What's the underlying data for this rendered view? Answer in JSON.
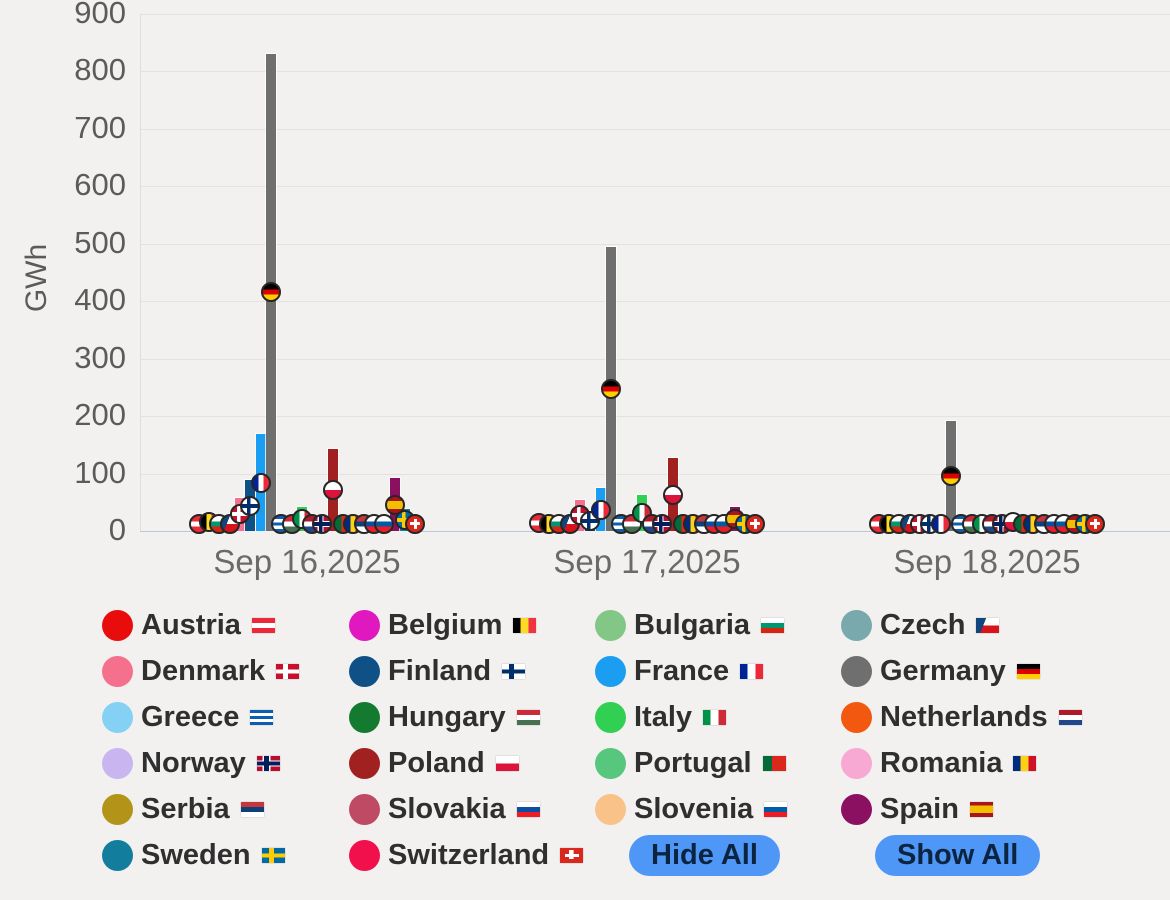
{
  "chart": {
    "ylabel": "GWh",
    "ytick_labels": [
      "0",
      "100",
      "200",
      "300",
      "400",
      "500",
      "600",
      "700",
      "800",
      "900"
    ]
  },
  "chart_data": {
    "type": "bar",
    "title": "",
    "xlabel": "",
    "ylabel": "GWh",
    "unit": "GWh",
    "ylim": [
      0,
      900
    ],
    "ytick_step": 100,
    "grid": true,
    "legend_position": "bottom",
    "marker_style": "flag-circle-at-bar-midpoint",
    "categories": [
      "Sep 16,2025",
      "Sep 17,2025",
      "Sep 18,2025"
    ],
    "series": [
      {
        "name": "Austria",
        "color": "#e80c0c",
        "values": [
          22,
          28,
          5
        ],
        "flag": {
          "type": "h",
          "colors": [
            "#ed2939",
            "#ffffff",
            "#ed2939"
          ]
        }
      },
      {
        "name": "Belgium",
        "color": "#e018c0",
        "values": [
          31,
          18,
          8
        ],
        "flag": {
          "type": "v",
          "colors": [
            "#000000",
            "#fdda24",
            "#ef3340"
          ]
        }
      },
      {
        "name": "Bulgaria",
        "color": "#82c785",
        "values": [
          6,
          11,
          4
        ],
        "flag": {
          "type": "h",
          "colors": [
            "#ffffff",
            "#00966e",
            "#d62612"
          ]
        }
      },
      {
        "name": "Czech",
        "color": "#79a8ad",
        "values": [
          8,
          6,
          5
        ],
        "flag": {
          "type": "h",
          "colors": [
            "#ffffff",
            "#d7141a"
          ],
          "triangle": "#11457e"
        }
      },
      {
        "name": "Denmark",
        "color": "#f4708c",
        "values": [
          58,
          54,
          13
        ],
        "flag": {
          "type": "nordic",
          "bg": "#c8102e",
          "fg": "#ffffff"
        }
      },
      {
        "name": "Finland",
        "color": "#0f5187",
        "values": [
          88,
          34,
          11
        ],
        "flag": {
          "type": "nordic",
          "bg": "#ffffff",
          "fg": "#002f6c"
        }
      },
      {
        "name": "France",
        "color": "#1b9df2",
        "values": [
          168,
          74,
          13
        ],
        "flag": {
          "type": "v",
          "colors": [
            "#002395",
            "#ffffff",
            "#ed2939"
          ]
        }
      },
      {
        "name": "Germany",
        "color": "#6f6f6f",
        "values": [
          831,
          494,
          191
        ],
        "flag": {
          "type": "h",
          "colors": [
            "#000000",
            "#dd0000",
            "#ffce00"
          ]
        }
      },
      {
        "name": "Greece",
        "color": "#84d1f5",
        "values": [
          9,
          9,
          9
        ],
        "flag": {
          "type": "h",
          "colors": [
            "#0d5eaf",
            "#ffffff",
            "#0d5eaf",
            "#ffffff",
            "#0d5eaf"
          ]
        }
      },
      {
        "name": "Hungary",
        "color": "#137a30",
        "values": [
          4,
          3,
          2
        ],
        "flag": {
          "type": "h",
          "colors": [
            "#ce2939",
            "#ffffff",
            "#477050"
          ]
        }
      },
      {
        "name": "Italy",
        "color": "#31cf52",
        "values": [
          41,
          62,
          10
        ],
        "flag": {
          "type": "v",
          "colors": [
            "#009246",
            "#ffffff",
            "#ce2b37"
          ]
        }
      },
      {
        "name": "Netherlands",
        "color": "#f2580f",
        "values": [
          14,
          13,
          7
        ],
        "flag": {
          "type": "h",
          "colors": [
            "#ae1c28",
            "#ffffff",
            "#21468b"
          ]
        }
      },
      {
        "name": "Norway",
        "color": "#c9b5f0",
        "values": [
          9,
          8,
          5
        ],
        "flag": {
          "type": "nordic",
          "bg": "#ba0c2f",
          "fg": "#00205b",
          "outline": "#ffffff"
        }
      },
      {
        "name": "Poland",
        "color": "#a12121",
        "values": [
          142,
          127,
          31
        ],
        "flag": {
          "type": "h",
          "colors": [
            "#ffffff",
            "#dc143c"
          ]
        }
      },
      {
        "name": "Portugal",
        "color": "#58c77e",
        "values": [
          11,
          13,
          6
        ],
        "flag": {
          "type": "v",
          "colors": [
            "#046a38",
            "#da291c"
          ],
          "widths": [
            40,
            60
          ]
        }
      },
      {
        "name": "Romania",
        "color": "#f7a8d3",
        "values": [
          7,
          9,
          7
        ],
        "flag": {
          "type": "v",
          "colors": [
            "#002b7f",
            "#fcd116",
            "#ce1126"
          ]
        }
      },
      {
        "name": "Serbia",
        "color": "#b39418",
        "values": [
          10,
          4,
          2
        ],
        "flag": {
          "type": "h",
          "colors": [
            "#c6363c",
            "#0c4076",
            "#ffffff"
          ]
        }
      },
      {
        "name": "Slovakia",
        "color": "#bf4a63",
        "values": [
          5,
          8,
          8
        ],
        "flag": {
          "type": "h",
          "colors": [
            "#ffffff",
            "#0b4ea2",
            "#ee1c25"
          ]
        }
      },
      {
        "name": "Slovenia",
        "color": "#f8c289",
        "values": [
          11,
          6,
          3
        ],
        "flag": {
          "type": "h",
          "colors": [
            "#ffffff",
            "#005da4",
            "#ed1c24"
          ]
        }
      },
      {
        "name": "Spain",
        "color": "#8c1061",
        "values": [
          92,
          42,
          9
        ],
        "flag": {
          "type": "h",
          "colors": [
            "#aa151b",
            "#f1bf00",
            "#aa151b"
          ],
          "widths": [
            25,
            50,
            25
          ]
        }
      },
      {
        "name": "Sweden",
        "color": "#137d9e",
        "values": [
          38,
          11,
          3
        ],
        "flag": {
          "type": "nordic",
          "bg": "#006aa7",
          "fg": "#fecc02"
        }
      },
      {
        "name": "Switzerland",
        "color": "#f2104c",
        "values": [
          15,
          13,
          9
        ],
        "flag": {
          "type": "plus",
          "bg": "#da291c",
          "fg": "#ffffff"
        }
      }
    ]
  },
  "legend": {
    "hide_all_label": "Hide All",
    "show_all_label": "Show All",
    "button_color": "#4f97f7",
    "button_text_color": "#0d2440"
  }
}
